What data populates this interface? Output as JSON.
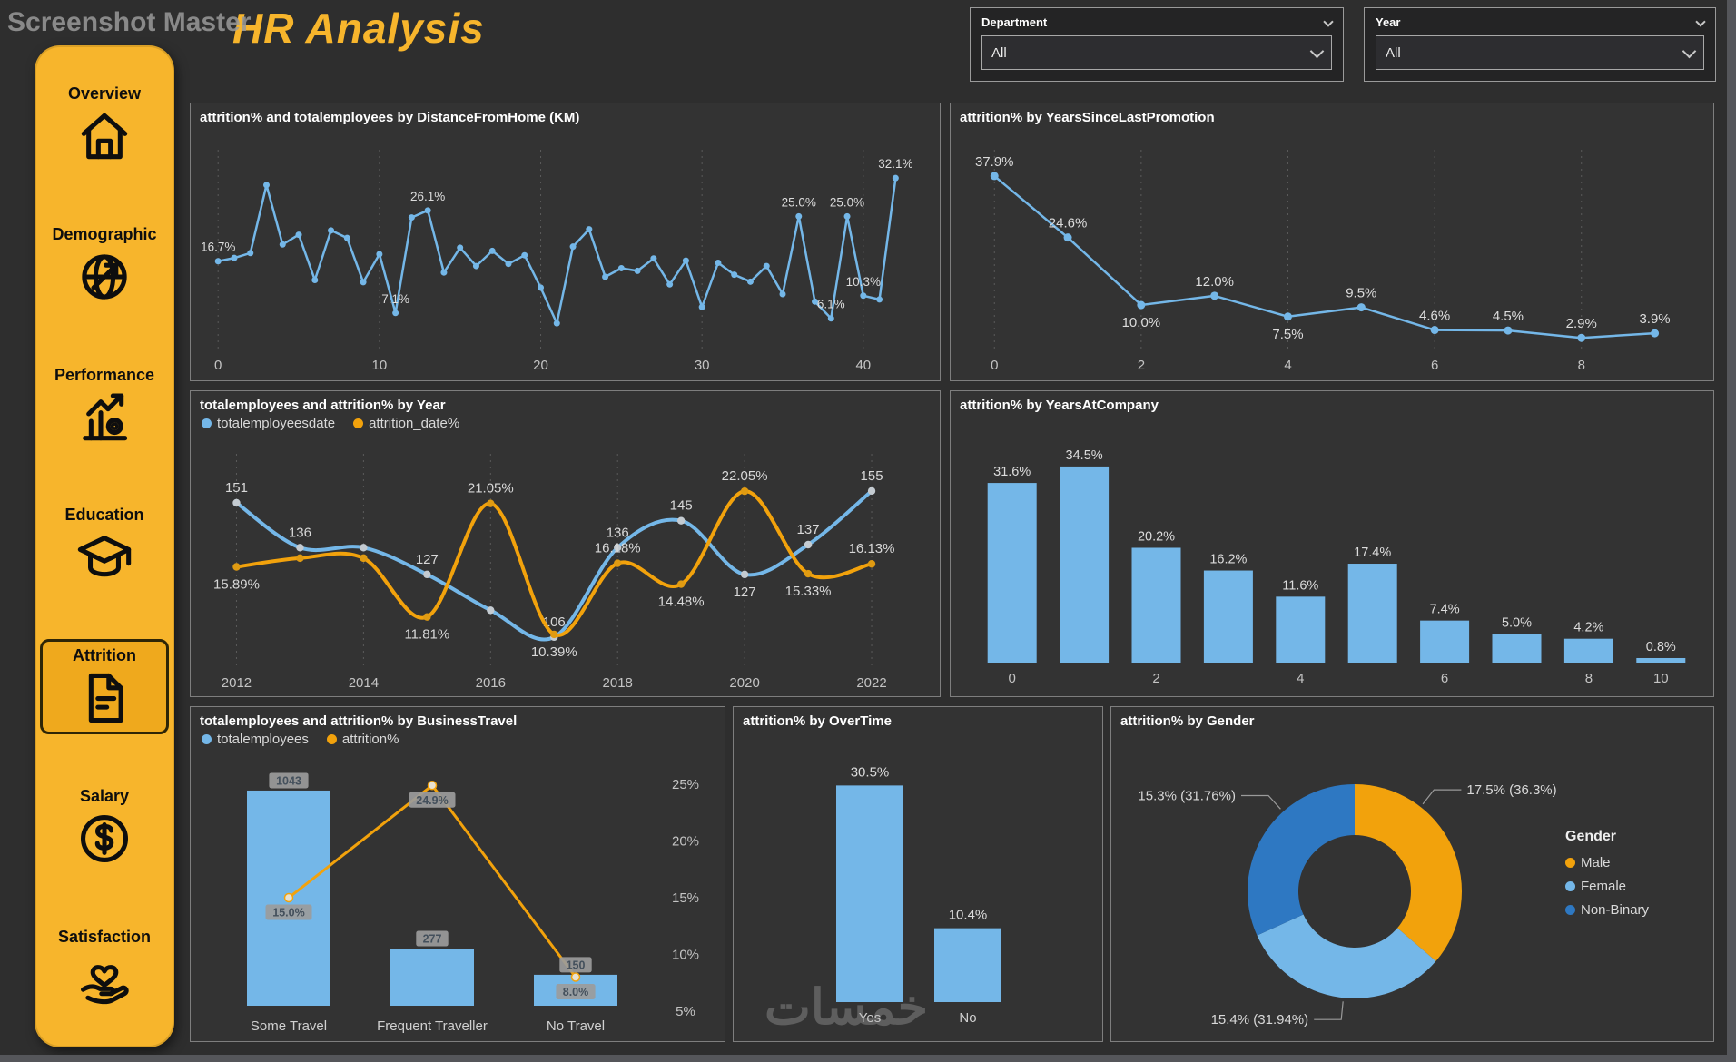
{
  "watermarks": {
    "top": "Screenshot Master",
    "bottom": "خمسات"
  },
  "header": {
    "title": "HR Analysis"
  },
  "filters": [
    {
      "label": "Department",
      "value": "All"
    },
    {
      "label": "Year",
      "value": "All"
    }
  ],
  "sidebar": {
    "items": [
      {
        "label": "Overview"
      },
      {
        "label": "Demographic"
      },
      {
        "label": "Performance"
      },
      {
        "label": "Education"
      },
      {
        "label": "Attrition",
        "selected": true
      },
      {
        "label": "Salary"
      },
      {
        "label": "Satisfaction"
      }
    ]
  },
  "colors": {
    "blue": "#74B7E8",
    "yellow": "#F2A20C",
    "dark_blue": "#2E78C2",
    "sidebar_yellow": "#F7B52C",
    "panel_bg": "#333333",
    "page_bg": "#2E2E2E",
    "text_light": "#D4D4D4",
    "grid": "#5A5A5A",
    "chip_bg": "#9B9B9B"
  },
  "chart_data": [
    {
      "id": "distance",
      "type": "line",
      "title": "attrition% and totalemployees by DistanceFromHome (KM)",
      "xlabel": "DistanceFromHome (KM)",
      "ylabel": "attrition%",
      "x_ticks": [
        0,
        10,
        20,
        30,
        40
      ],
      "x": [
        0,
        1,
        2,
        3,
        4,
        5,
        6,
        7,
        8,
        9,
        10,
        11,
        12,
        13,
        14,
        15,
        16,
        17,
        18,
        19,
        20,
        21,
        22,
        23,
        24,
        25,
        26,
        27,
        28,
        29,
        30,
        31,
        32,
        33,
        34,
        35,
        36,
        37,
        38,
        39,
        40,
        41,
        42
      ],
      "y": [
        16.7,
        17.3,
        18.2,
        30.8,
        19.8,
        21.6,
        13.2,
        22.4,
        21.0,
        12.8,
        18.0,
        7.1,
        24.8,
        26.1,
        14.6,
        19.2,
        15.8,
        18.6,
        16.2,
        17.8,
        11.8,
        5.2,
        19.4,
        22.6,
        13.8,
        15.4,
        14.9,
        17.2,
        12.4,
        16.8,
        8.2,
        16.4,
        14.2,
        12.9,
        15.8,
        10.6,
        25.0,
        9.2,
        6.1,
        25.0,
        10.3,
        9.6,
        32.1
      ],
      "labels": {
        "0": "16.7%",
        "11": "7.1%",
        "13": "26.1%",
        "36": "25.0%",
        "38": "6.1%",
        "39": "25.0%",
        "40": "10.3%",
        "42": "32.1%"
      },
      "label_below": []
    },
    {
      "id": "promotion",
      "type": "line",
      "title": "attrition% by YearsSinceLastPromotion",
      "xlabel": "YearsSinceLastPromotion",
      "ylabel": "attrition%",
      "x_ticks": [
        0,
        2,
        4,
        6,
        8
      ],
      "x": [
        0,
        1,
        2,
        3,
        4,
        5,
        6,
        7,
        8,
        9
      ],
      "y": [
        37.9,
        24.6,
        10.0,
        12.0,
        7.5,
        9.5,
        4.6,
        4.5,
        2.9,
        3.9
      ],
      "labels": {
        "0": "37.9%",
        "1": "24.6%",
        "2": "10.0%",
        "3": "12.0%",
        "4": "7.5%",
        "5": "9.5%",
        "6": "4.6%",
        "7": "4.5%",
        "8": "2.9%",
        "9": "3.9%"
      },
      "label_below": [
        2,
        4
      ]
    },
    {
      "id": "year",
      "type": "dual-line",
      "title": "totalemployees and attrition% by Year",
      "x_ticks": [
        2012,
        2014,
        2016,
        2018,
        2020,
        2022
      ],
      "series": [
        {
          "name": "totalemployeesdate",
          "color": "blue",
          "points": [
            [
              2012,
              151
            ],
            [
              2013,
              136
            ],
            [
              2014,
              136
            ],
            [
              2015,
              127
            ],
            [
              2016,
              115
            ],
            [
              2017,
              106
            ],
            [
              2018,
              136
            ],
            [
              2019,
              145
            ],
            [
              2020,
              127
            ],
            [
              2021,
              137
            ],
            [
              2022,
              155
            ]
          ],
          "labels": {
            "0": "151",
            "1": "136",
            "3": "127",
            "5": "106",
            "6": "136",
            "7": "145",
            "8": "127",
            "9": "137",
            "10": "155"
          },
          "label_below": [
            8
          ]
        },
        {
          "name": "attrition_date%",
          "color": "yellow",
          "points": [
            [
              2012,
              15.89
            ],
            [
              2013,
              16.6
            ],
            [
              2014,
              16.6
            ],
            [
              2015,
              11.81
            ],
            [
              2016,
              21.05
            ],
            [
              2017,
              10.39
            ],
            [
              2018,
              16.18
            ],
            [
              2019,
              14.48
            ],
            [
              2020,
              22.05
            ],
            [
              2021,
              15.33
            ],
            [
              2022,
              16.13
            ]
          ],
          "labels": {
            "0": "15.89%",
            "3": "11.81%",
            "4": "21.05%",
            "5": "10.39%",
            "6": "16.18%",
            "7": "14.48%",
            "8": "22.05%",
            "9": "15.33%",
            "10": "16.13%"
          },
          "label_below": [
            0,
            3,
            5,
            7,
            9
          ]
        }
      ]
    },
    {
      "id": "tenure",
      "type": "bar",
      "title": "attrition% by YearsAtCompany",
      "xlabel": "YearsAtCompany",
      "values": [
        31.6,
        34.5,
        20.2,
        16.2,
        11.6,
        17.4,
        7.4,
        5.0,
        4.2,
        0.8
      ],
      "labels": [
        "31.6%",
        "34.5%",
        "20.2%",
        "16.2%",
        "11.6%",
        "17.4%",
        "7.4%",
        "5.0%",
        "4.2%",
        "0.8%"
      ],
      "ticks": {
        "0": "0",
        "2": "2",
        "4": "4",
        "6": "6",
        "8": "8",
        "9": "10"
      }
    },
    {
      "id": "travel",
      "type": "bar-line",
      "title": "totalemployees and attrition% by BusinessTravel",
      "legend": [
        {
          "name": "totalemployees",
          "color": "blue"
        },
        {
          "name": "attrition%",
          "color": "yellow"
        }
      ],
      "categories": [
        "Some Travel",
        "Frequent Traveller",
        "No Travel"
      ],
      "bar_values": [
        1043,
        277,
        150
      ],
      "bar_labels": [
        "1043",
        "277",
        "150"
      ],
      "line_values": [
        15.0,
        24.9,
        8.0
      ],
      "line_labels": [
        "15.0%",
        "24.9%",
        "8.0%"
      ],
      "y_axis_right": [
        "25%",
        "20%",
        "15%",
        "10%",
        "5%"
      ]
    },
    {
      "id": "overtime",
      "type": "bar",
      "title": "attrition% by OverTime",
      "categories": [
        "Yes",
        "No"
      ],
      "values": [
        30.5,
        10.4
      ],
      "labels": [
        "30.5%",
        "10.4%"
      ]
    },
    {
      "id": "gender",
      "type": "donut",
      "title": "attrition% by Gender",
      "legend_title": "Gender",
      "slices": [
        {
          "name": "Male",
          "color": "yellow",
          "pct": 36.3,
          "callout": "17.5% (36.3%)"
        },
        {
          "name": "Female",
          "color": "blue",
          "pct": 31.94,
          "callout": "15.4% (31.94%)"
        },
        {
          "name": "Non-Binary",
          "color": "dark_blue",
          "pct": 31.76,
          "callout": "15.3% (31.76%)"
        }
      ]
    }
  ]
}
